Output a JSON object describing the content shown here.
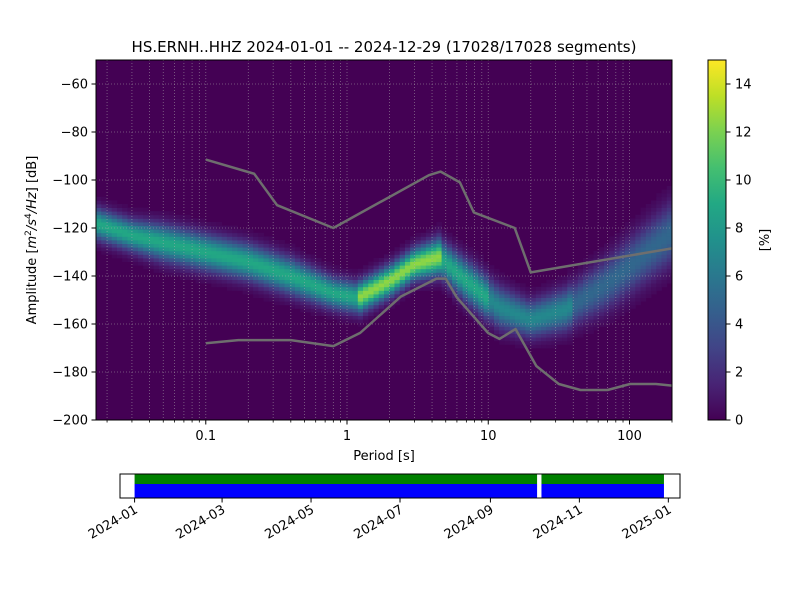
{
  "chart_data": [
    {
      "type": "heatmap",
      "title": "HS.ERNH..HHZ   2024-01-01 -- 2024-12-29  (17028/17028 segments)",
      "xlabel": "Period [s]",
      "ylabel_parts": {
        "prefix": "Amplitude [",
        "m": "m",
        "exp2": "2",
        "slash_s": "/s",
        "exp4": "4",
        "hz": "/Hz",
        "suffix": "] [dB]"
      },
      "xscale": "log",
      "xlim": [
        0.0167,
        200
      ],
      "ylim": [
        -200,
        -50
      ],
      "grid": true,
      "x_ticks": [
        0.1,
        1,
        10,
        100
      ],
      "x_tick_labels": [
        "0.1",
        "1",
        "10",
        "100"
      ],
      "y_ticks": [
        -200,
        -180,
        -160,
        -140,
        -120,
        -100,
        -80,
        -60
      ],
      "y_tick_labels": [
        "−200",
        "−180",
        "−160",
        "−140",
        "−120",
        "−100",
        "−80",
        "−60"
      ],
      "colorbar": {
        "label": "[%]",
        "range": [
          0,
          15
        ],
        "ticks": [
          0,
          2,
          4,
          6,
          8,
          10,
          12,
          14
        ],
        "tick_labels": [
          "0",
          "2",
          "4",
          "6",
          "8",
          "10",
          "12",
          "14"
        ],
        "colormap": "viridis"
      },
      "mode_curve": [
        {
          "period": 0.0167,
          "db": -118,
          "width": 6
        },
        {
          "period": 0.03,
          "db": -123,
          "width": 6
        },
        {
          "period": 0.05,
          "db": -126,
          "width": 7
        },
        {
          "period": 0.1,
          "db": -130,
          "width": 7
        },
        {
          "period": 0.2,
          "db": -134,
          "width": 7
        },
        {
          "period": 0.4,
          "db": -140,
          "width": 7
        },
        {
          "period": 0.8,
          "db": -147,
          "width": 6
        },
        {
          "period": 1.2,
          "db": -149,
          "width": 6
        },
        {
          "period": 2.0,
          "db": -142,
          "width": 6
        },
        {
          "period": 3.0,
          "db": -135,
          "width": 6
        },
        {
          "period": 4.5,
          "db": -132,
          "width": 7
        },
        {
          "period": 7.0,
          "db": -142,
          "width": 8
        },
        {
          "period": 12,
          "db": -153,
          "width": 8
        },
        {
          "period": 20,
          "db": -158,
          "width": 7
        },
        {
          "period": 35,
          "db": -154,
          "width": 8
        },
        {
          "period": 70,
          "db": -143,
          "width": 10
        },
        {
          "period": 200,
          "db": -122,
          "width": 12
        }
      ],
      "noise_models": [
        {
          "name": "NHNM",
          "color": "#6e6e6e",
          "points": [
            [
              0.1,
              -91.5
            ],
            [
              0.22,
              -97.4
            ],
            [
              0.32,
              -110.5
            ],
            [
              0.8,
              -120
            ],
            [
              3.8,
              -98
            ],
            [
              4.6,
              -96.5
            ],
            [
              6.3,
              -101
            ],
            [
              7.9,
              -113.5
            ],
            [
              15.4,
              -120
            ],
            [
              20,
              -138.5
            ],
            [
              200,
              -128.5
            ]
          ]
        },
        {
          "name": "NLNM",
          "color": "#6e6e6e",
          "points": [
            [
              0.1,
              -168
            ],
            [
              0.17,
              -166.7
            ],
            [
              0.4,
              -166.7
            ],
            [
              0.8,
              -169.2
            ],
            [
              1.24,
              -163.7
            ],
            [
              2.4,
              -148.6
            ],
            [
              4.3,
              -141.1
            ],
            [
              5.0,
              -141.1
            ],
            [
              6.0,
              -149
            ],
            [
              10,
              -163.8
            ],
            [
              12,
              -166.2
            ],
            [
              15.6,
              -162.1
            ],
            [
              21.9,
              -177.5
            ],
            [
              31.6,
              -185
            ],
            [
              45,
              -187.5
            ],
            [
              70,
              -187.5
            ],
            [
              101,
              -185
            ],
            [
              154,
              -185
            ],
            [
              200,
              -185.7
            ]
          ]
        }
      ]
    },
    {
      "type": "bar",
      "x_tick_labels": [
        "2024-01",
        "2024-03",
        "2024-05",
        "2024-07",
        "2024-09",
        "2024-11",
        "2025-01"
      ],
      "x_ticks": [
        "2024-01-01",
        "2024-03-01",
        "2024-05-01",
        "2024-07-01",
        "2024-09-01",
        "2024-11-01",
        "2025-01-01"
      ],
      "xlim": [
        "2023-12-22",
        "2025-01-09"
      ],
      "series": [
        {
          "color": "#0000ff",
          "intervals": [
            [
              "2024-01-01",
              "2024-10-03"
            ],
            [
              "2024-10-06",
              "2024-12-29"
            ]
          ]
        },
        {
          "color": "#008000",
          "intervals": [
            [
              "2024-01-01",
              "2024-10-03"
            ],
            [
              "2024-10-06",
              "2024-12-29"
            ]
          ]
        }
      ]
    }
  ]
}
